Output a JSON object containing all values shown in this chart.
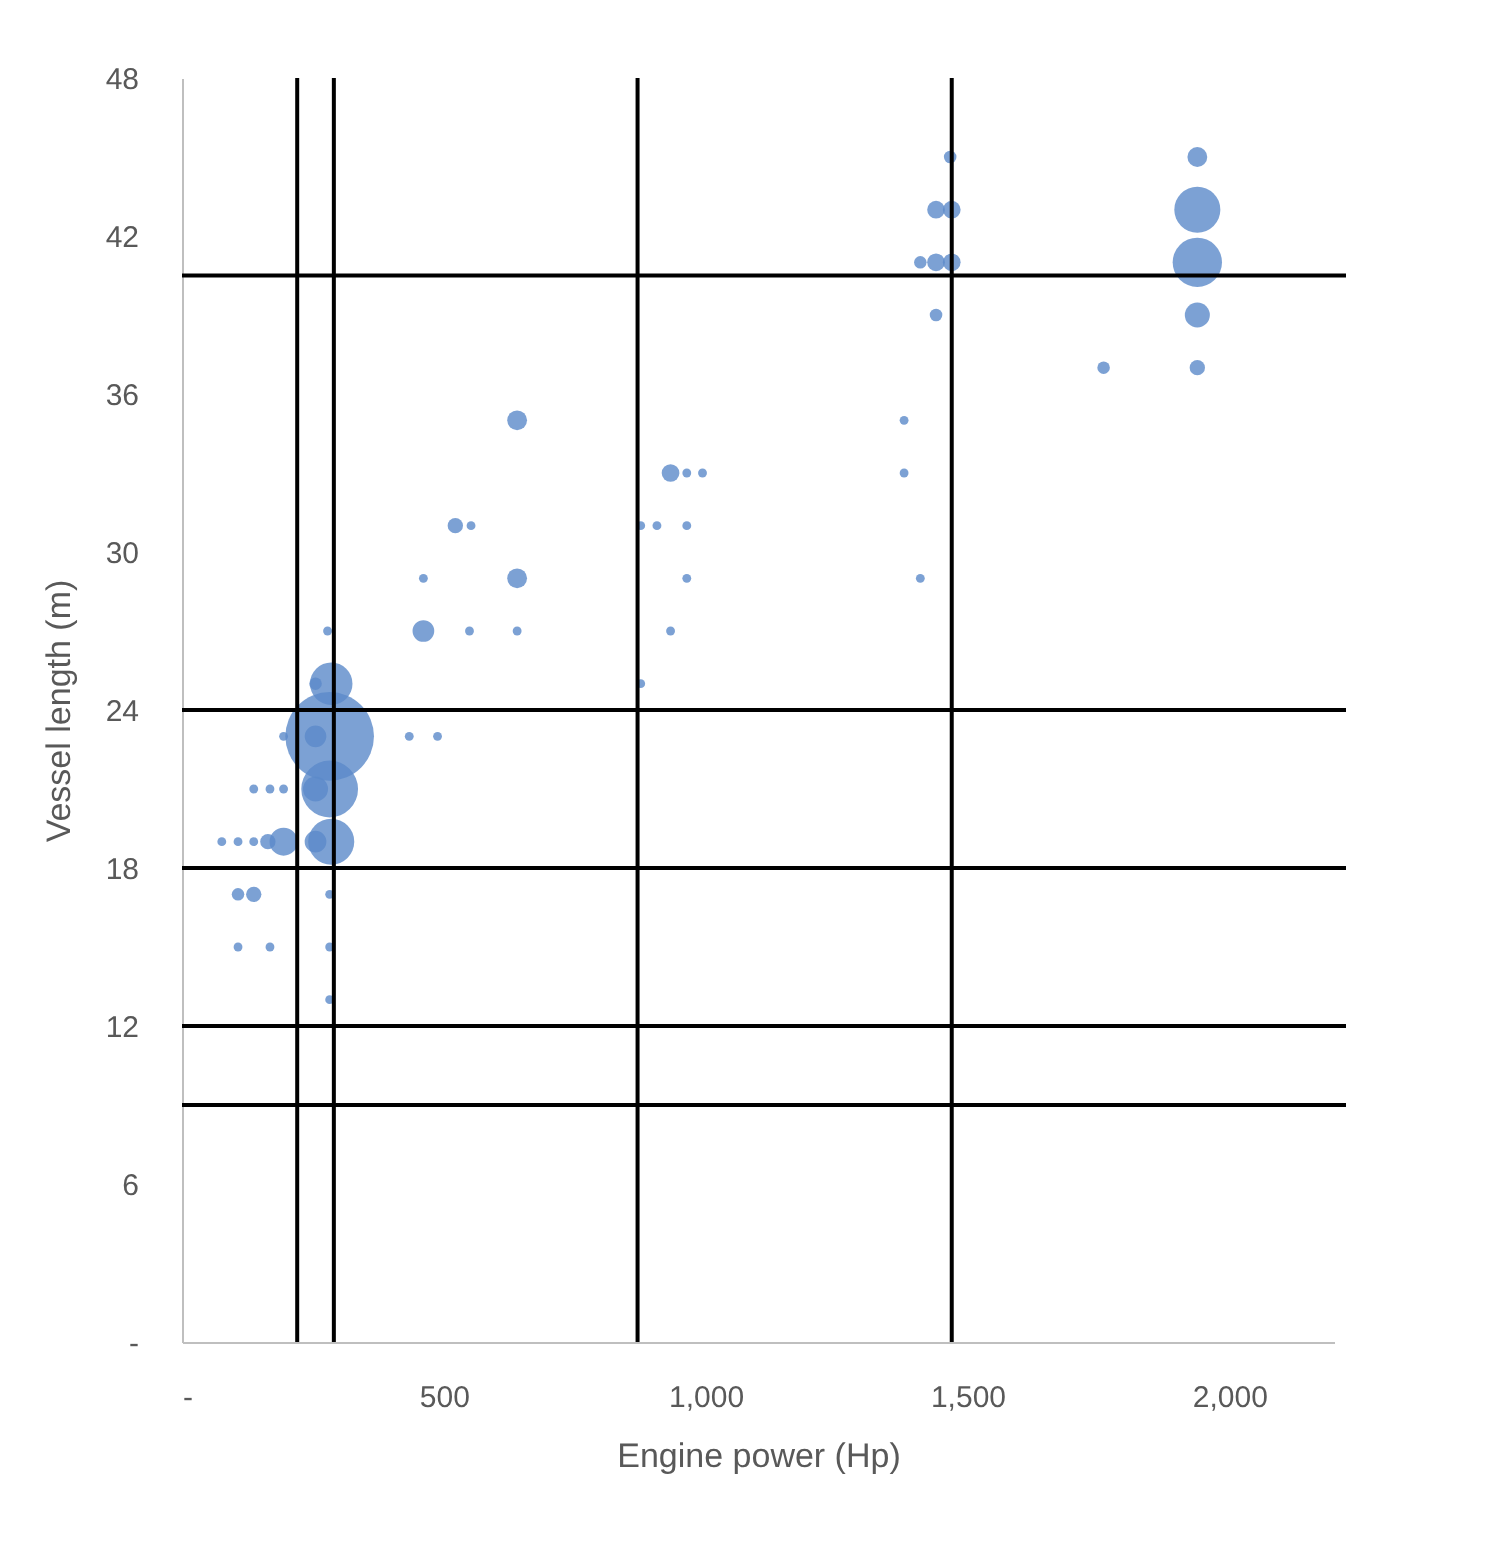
{
  "chart_data": {
    "type": "bubble",
    "xlabel": "Engine power (Hp)",
    "ylabel": "Vessel length (m)",
    "xlim": [
      0,
      2200
    ],
    "ylim": [
      0,
      48
    ],
    "xticks": [
      {
        "value": 0,
        "label": "-"
      },
      500,
      {
        "value": 1000,
        "label": "1,000"
      },
      {
        "value": 1500,
        "label": "1,500"
      },
      {
        "value": 2000,
        "label": "2,000"
      }
    ],
    "yticks": [
      {
        "value": 0,
        "label": "-"
      },
      6,
      12,
      18,
      24,
      30,
      36,
      42,
      48
    ],
    "grid": false,
    "legend": false,
    "series": [
      {
        "color": "#5b8ac9",
        "x": [
          282,
          107,
          168,
          282,
          107,
          137,
          282,
          76,
          107,
          137,
          164,
          194,
          255,
          285,
          137,
          168,
          194,
          255,
          282,
          194,
          255,
          282,
          434,
          488,
          285,
          255,
          876,
          278,
          461,
          549,
          640,
          933,
          461,
          640,
          964,
          1410,
          522,
          552,
          876,
          907,
          964,
          933,
          964,
          994,
          1379,
          640,
          1379,
          1760,
          1939,
          1440,
          1939,
          1410,
          1440,
          1470,
          1939,
          1440,
          1470,
          1939,
          1467,
          1939
        ],
        "values": [
          13,
          15,
          15,
          15,
          17,
          17,
          17,
          19,
          19,
          19,
          19,
          19,
          19,
          19,
          21,
          21,
          21,
          21,
          21,
          23,
          23,
          23,
          23,
          23,
          25,
          25,
          25,
          27,
          27,
          27,
          27,
          27,
          29,
          29,
          29,
          29,
          31,
          31,
          31,
          31,
          31,
          33,
          33,
          33,
          33,
          35,
          35,
          37,
          37,
          39,
          39,
          41,
          41,
          41,
          41,
          43,
          43,
          43,
          45,
          45
        ],
        "sizes": [
          0.01,
          0.01,
          0.01,
          0.01,
          0.02,
          0.03,
          0.01,
          0.01,
          0.01,
          0.01,
          0.03,
          0.1,
          0.06,
          0.27,
          0.01,
          0.01,
          0.01,
          0.08,
          0.41,
          0.01,
          0.06,
          1,
          0.01,
          0.01,
          0.23,
          0.02,
          0.01,
          0.01,
          0.06,
          0.01,
          0.01,
          0.01,
          0.01,
          0.05,
          0.01,
          0.01,
          0.03,
          0.01,
          0.01,
          0.01,
          0.01,
          0.04,
          0.01,
          0.01,
          0.01,
          0.05,
          0.01,
          0.02,
          0.03,
          0.02,
          0.08,
          0.02,
          0.04,
          0.04,
          0.31,
          0.04,
          0.04,
          0.27,
          0.02,
          0.05
        ]
      }
    ],
    "ref_lines": [
      {
        "axis": "x",
        "value": 220,
        "color": "#000000"
      },
      {
        "axis": "x",
        "value": 290,
        "color": "#000000"
      },
      {
        "axis": "x",
        "value": 870,
        "color": "#000000"
      },
      {
        "axis": "x",
        "value": 1470,
        "color": "#000000"
      },
      {
        "axis": "y",
        "value": 40.5,
        "color": "#000000"
      },
      {
        "axis": "y",
        "value": 24,
        "color": "#000000"
      },
      {
        "axis": "y",
        "value": 18,
        "color": "#000000"
      },
      {
        "axis": "y",
        "value": 12,
        "color": "#000000"
      },
      {
        "axis": "y",
        "value": 9,
        "color": "#000000"
      }
    ]
  }
}
